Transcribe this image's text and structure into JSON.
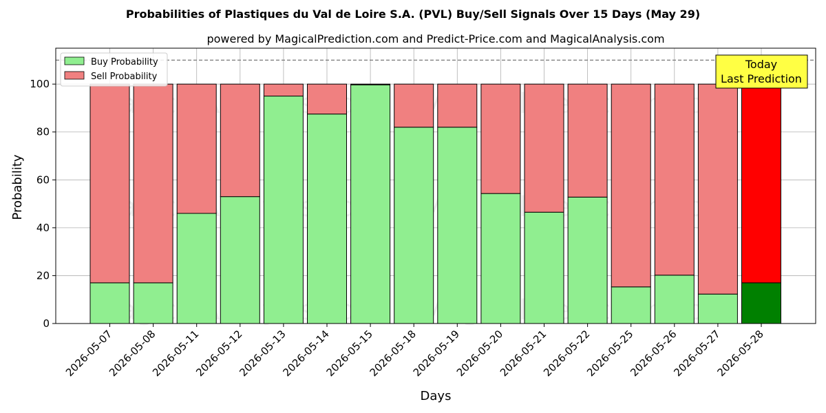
{
  "header": {
    "title": "Probabilities of Plastiques du Val de Loire S.A. (PVL) Buy/Sell Signals Over 15 Days (May 29)",
    "subtitle": "powered by MagicalPrediction.com and Predict-Price.com and MagicalAnalysis.com"
  },
  "watermarks": [
    "MagicalAnalysis.com",
    "MagicalPrediction.com"
  ],
  "today_box": {
    "line1": "Today",
    "line2": "Last Prediction"
  },
  "colors": {
    "buy": "#90ee90",
    "sell": "#f08080",
    "buy_last": "#008000",
    "sell_last": "#ff0000",
    "today_box": "#ffff44"
  },
  "chart_data": {
    "type": "bar",
    "stacked": true,
    "xlabel": "Days",
    "ylabel": "Probability",
    "ylim": [
      0,
      115
    ],
    "yticks": [
      0,
      20,
      40,
      60,
      80,
      100
    ],
    "reference_line": 110,
    "grid": true,
    "legend_position": "top-left",
    "categories": [
      "2026-05-07",
      "2026-05-08",
      "2026-05-11",
      "2026-05-12",
      "2026-05-13",
      "2026-05-14",
      "2026-05-15",
      "2026-05-18",
      "2026-05-19",
      "2026-05-20",
      "2026-05-21",
      "2026-05-22",
      "2026-05-25",
      "2026-05-26",
      "2026-05-27",
      "2026-05-28"
    ],
    "series": [
      {
        "name": "Buy Probability",
        "values": [
          17,
          17,
          46,
          53,
          95,
          87.5,
          99.7,
          82,
          82,
          54.3,
          46.5,
          52.8,
          15.3,
          20.2,
          12.3,
          17
        ]
      },
      {
        "name": "Sell Probability",
        "values": [
          83,
          83,
          54,
          47,
          5,
          12.5,
          0.3,
          18,
          18,
          45.7,
          53.5,
          47.2,
          84.7,
          79.8,
          87.7,
          83
        ]
      }
    ]
  }
}
